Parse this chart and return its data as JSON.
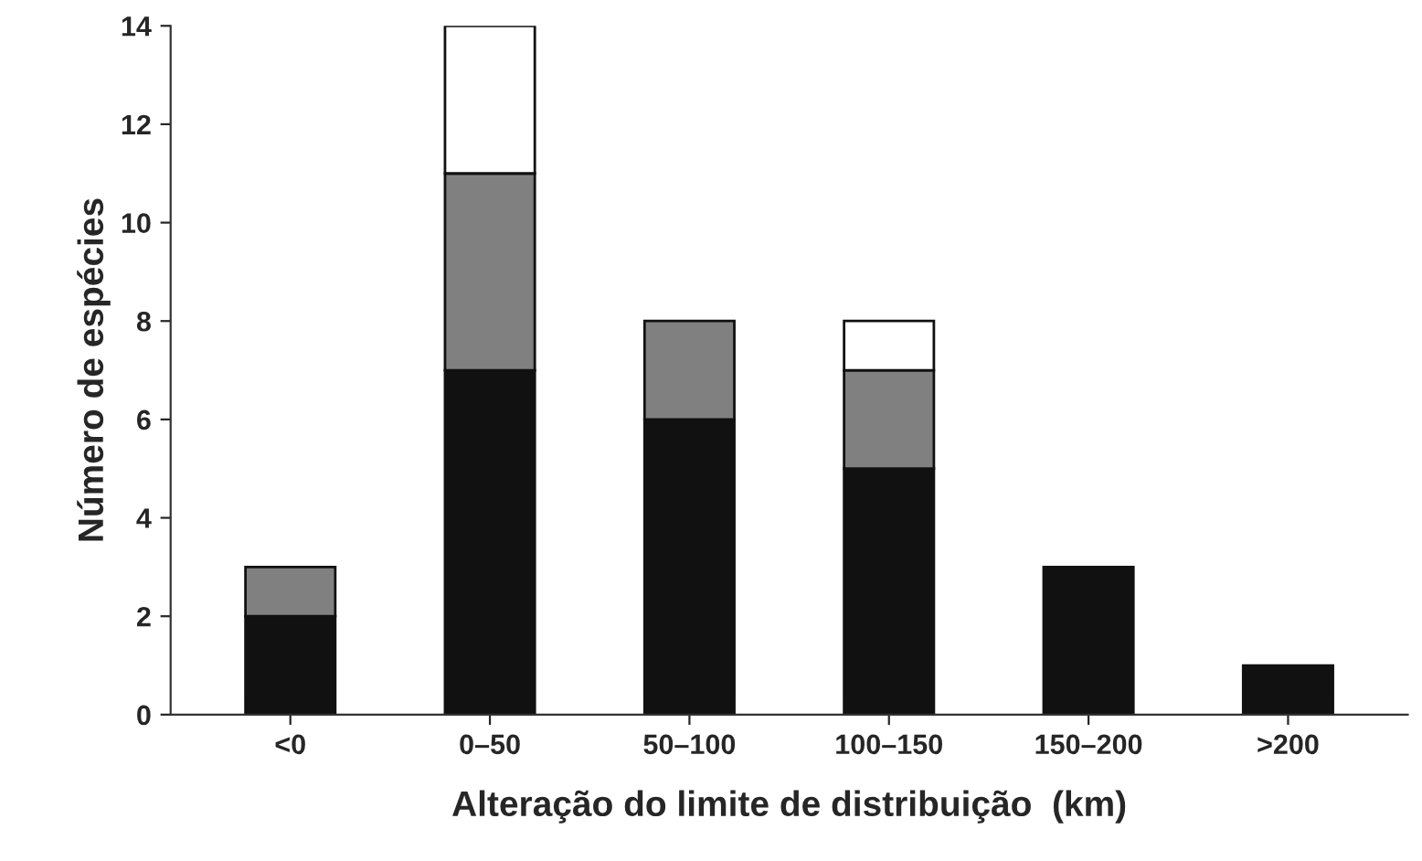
{
  "chart_data": {
    "type": "bar",
    "stacked": true,
    "xlabel": "Alteração do limite de distribuição  (km)",
    "ylabel": "Número de espécies",
    "categories": [
      "<0",
      "0–50",
      "50–100",
      "100–150",
      "150–200",
      ">200"
    ],
    "series": [
      {
        "color": "#111111",
        "values": [
          2,
          7,
          6,
          5,
          3,
          1
        ]
      },
      {
        "color": "#808080",
        "values": [
          1,
          4,
          2,
          2,
          0,
          0
        ]
      },
      {
        "color": "#ffffff",
        "values": [
          0,
          3,
          0,
          1,
          0,
          0
        ]
      }
    ],
    "ylim": [
      0,
      14
    ],
    "yticks": [
      0,
      2,
      4,
      6,
      8,
      10,
      12,
      14
    ],
    "grid": false
  }
}
